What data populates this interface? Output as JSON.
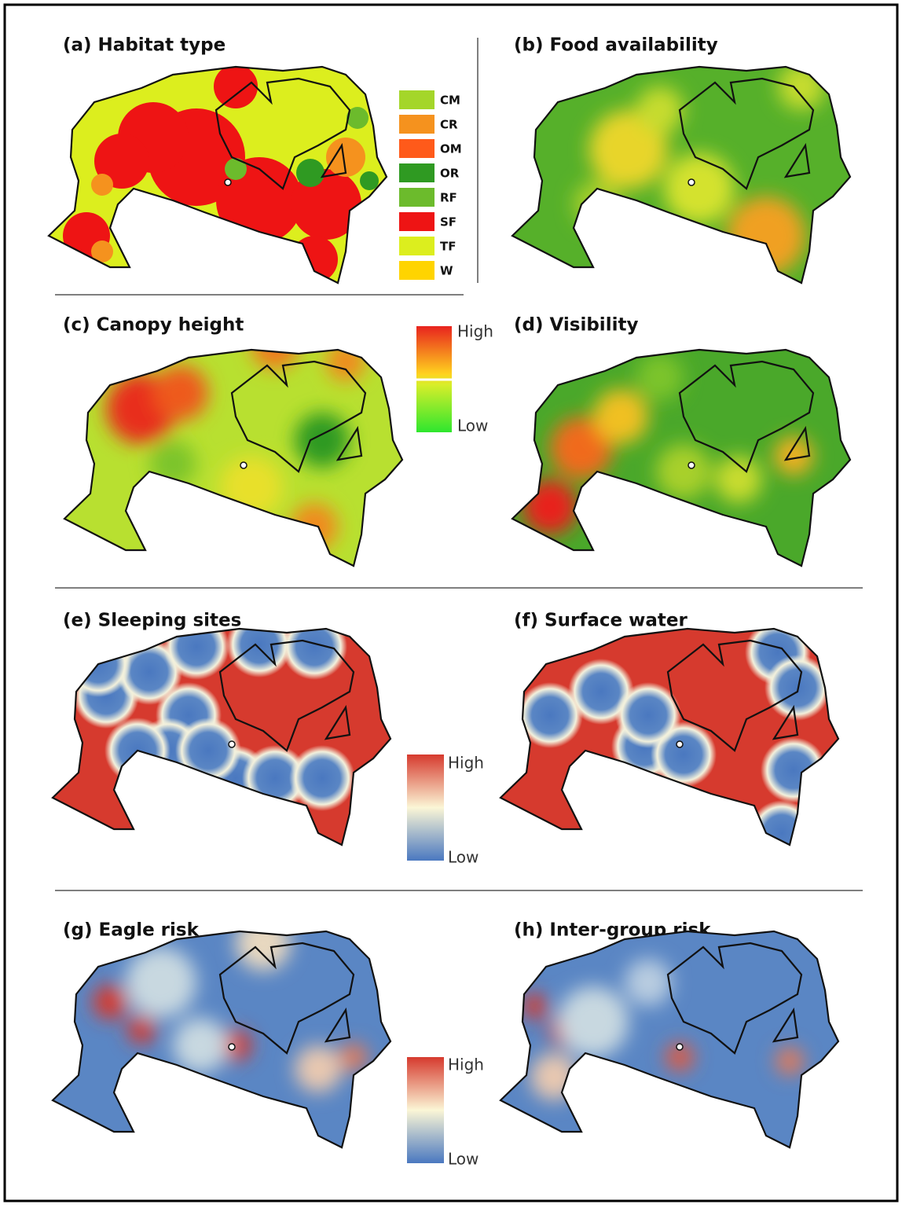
{
  "panels": [
    {
      "title": "(a) Habitat type"
    },
    {
      "title": "(b) Food availability"
    },
    {
      "title": "(c) Canopy height"
    },
    {
      "title": "(d) Visibility"
    },
    {
      "title": "(e) Sleeping sites"
    },
    {
      "title": "(f) Surface water"
    },
    {
      "title": "(g) Eagle risk"
    },
    {
      "title": "(h) Inter-group risk"
    }
  ],
  "habitat_legend": [
    {
      "label": "CM",
      "color": "#a4d62a"
    },
    {
      "label": "CR",
      "color": "#f5921e"
    },
    {
      "label": "OM",
      "color": "#ff5a1a"
    },
    {
      "label": "OR",
      "color": "#2f9a22"
    },
    {
      "label": "RF",
      "color": "#6cbb2c"
    },
    {
      "label": "SF",
      "color": "#ee1414"
    },
    {
      "label": "TF",
      "color": "#dcee1e"
    },
    {
      "label": "W",
      "color": "#ffd400"
    }
  ],
  "colorbars": [
    {
      "high": "High",
      "low": "Low"
    },
    {
      "high": "High",
      "low": "Low"
    },
    {
      "high": "High",
      "low": "Low"
    }
  ]
}
